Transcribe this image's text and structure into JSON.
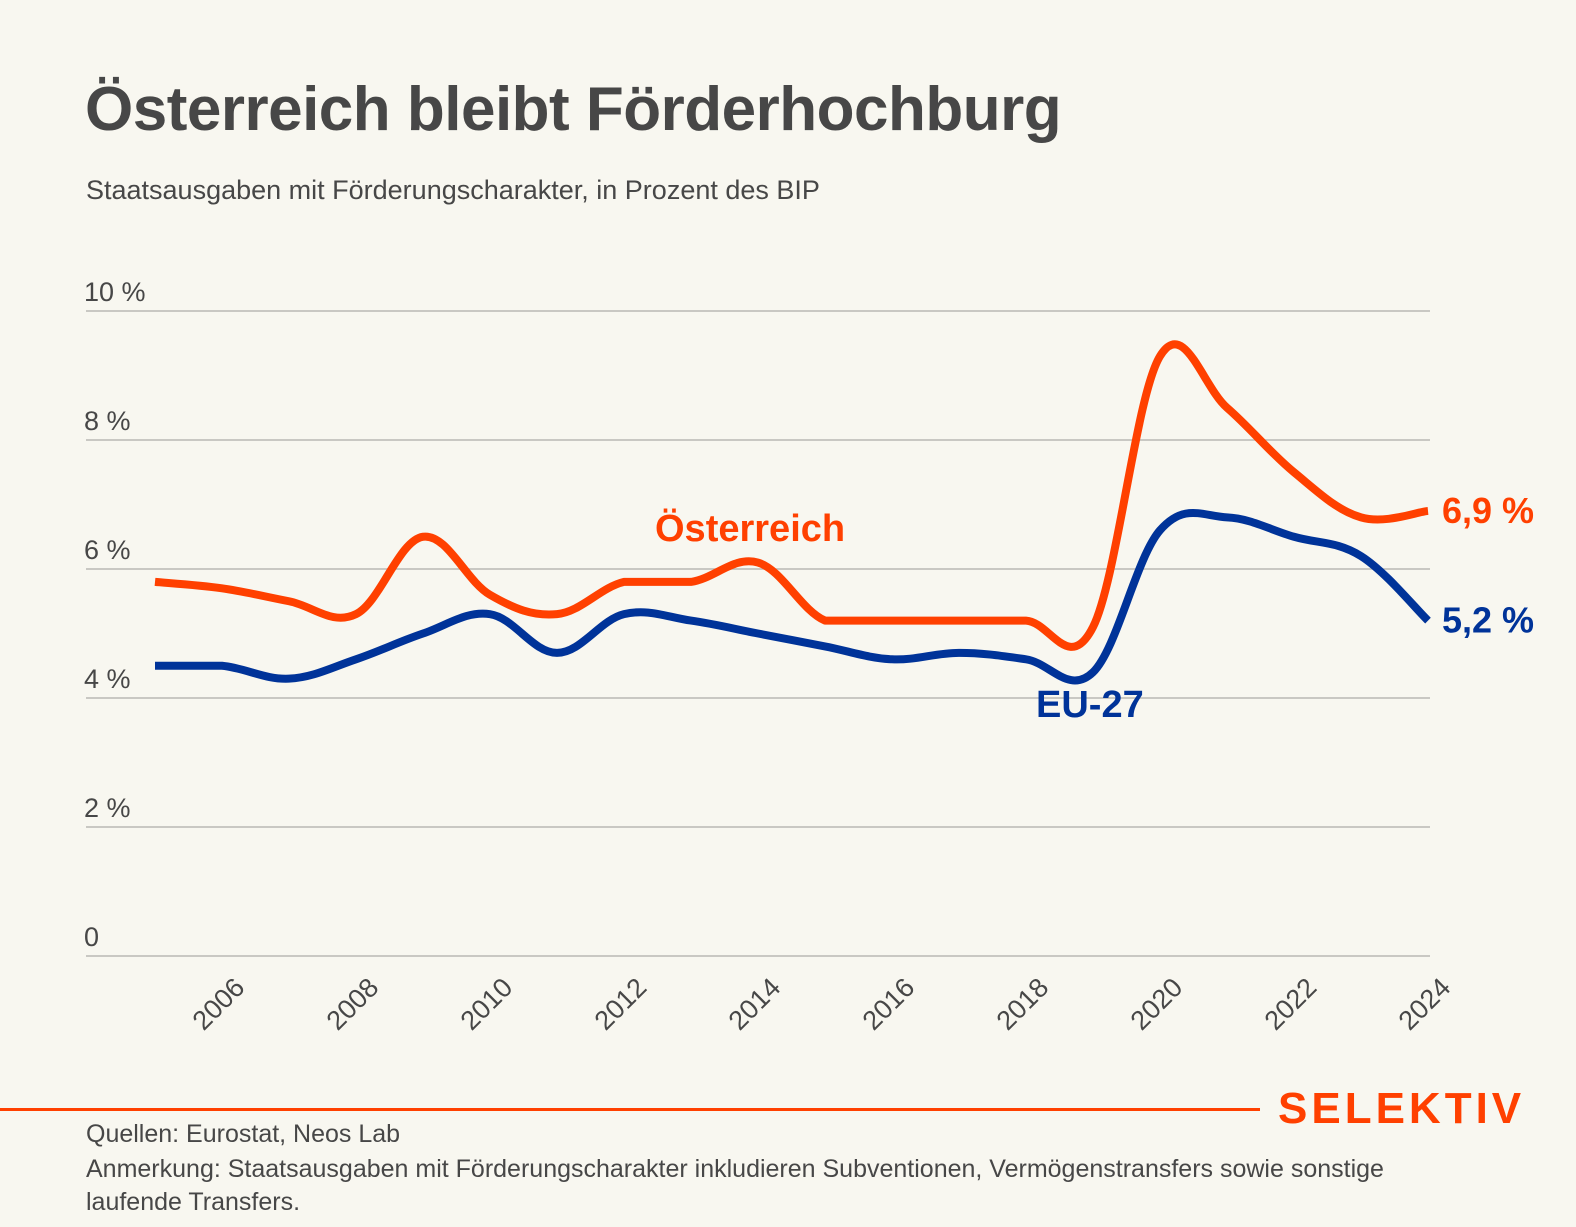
{
  "header": {
    "title": "Österreich bleibt Förderhochburg",
    "subtitle": "Staatsausgaben mit Förderungscharakter, in Prozent des BIP"
  },
  "chart_data": {
    "type": "line",
    "title": "Österreich bleibt Förderhochburg",
    "subtitle": "Staatsausgaben mit Förderungscharakter, in Prozent des BIP",
    "xlabel": "",
    "ylabel": "",
    "x": [
      2005,
      2006,
      2007,
      2008,
      2009,
      2010,
      2011,
      2012,
      2013,
      2014,
      2015,
      2016,
      2017,
      2018,
      2019,
      2020,
      2021,
      2022,
      2023,
      2024
    ],
    "xticks": [
      "2006",
      "2008",
      "2010",
      "2012",
      "2014",
      "2016",
      "2018",
      "2020",
      "2022",
      "2024"
    ],
    "xtick_values": [
      2006,
      2008,
      2010,
      2012,
      2014,
      2016,
      2018,
      2020,
      2022,
      2024
    ],
    "ylim": [
      0,
      10
    ],
    "yticks": [
      0,
      2,
      4,
      6,
      8,
      10
    ],
    "ytick_labels": [
      "0",
      "2 %",
      "4 %",
      "6 %",
      "8 %",
      "10 %"
    ],
    "grid": true,
    "series": [
      {
        "name": "Österreich",
        "color": "#ff4000",
        "values": [
          5.8,
          5.7,
          5.5,
          5.3,
          6.5,
          5.6,
          5.3,
          5.8,
          5.8,
          6.1,
          5.2,
          5.2,
          5.2,
          5.2,
          5.1,
          9.3,
          8.5,
          7.5,
          6.8,
          6.9
        ],
        "end_label": "6,9 %"
      },
      {
        "name": "EU-27",
        "color": "#003399",
        "values": [
          4.5,
          4.5,
          4.3,
          4.6,
          5.0,
          5.3,
          4.7,
          5.3,
          5.2,
          5.0,
          4.8,
          4.6,
          4.7,
          4.6,
          4.4,
          6.6,
          6.8,
          6.5,
          6.2,
          5.2
        ],
        "end_label": "5,2 %"
      }
    ],
    "annotations": [
      {
        "text": "Österreich",
        "series": "Österreich",
        "near_year": 2013
      },
      {
        "text": "EU-27",
        "series": "EU-27",
        "near_year": 2019
      }
    ]
  },
  "footer": {
    "brand": "SELEKTIV",
    "source": "Quellen: Eurostat, Neos Lab",
    "note": "Anmerkung: Staatsausgaben mit Förderungscharakter inkludieren Subventionen, Vermögenstransfers sowie sonstige laufende Transfers."
  }
}
